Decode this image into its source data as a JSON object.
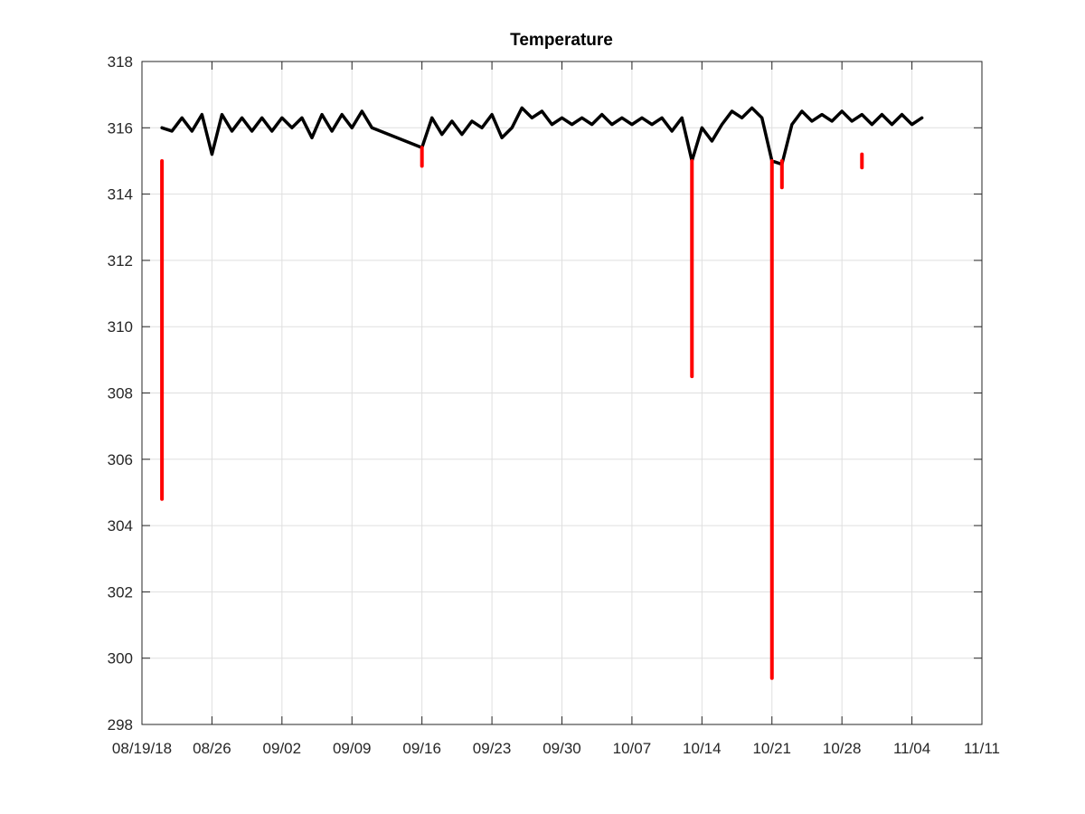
{
  "chart_data": {
    "type": "line",
    "title": "Temperature",
    "xlim": [
      "2018-08-19",
      "2018-11-11"
    ],
    "xticks": [
      {
        "value": "2018-08-19",
        "label": "08/19/18"
      },
      {
        "value": "2018-08-26",
        "label": "08/26"
      },
      {
        "value": "2018-09-02",
        "label": "09/02"
      },
      {
        "value": "2018-09-09",
        "label": "09/09"
      },
      {
        "value": "2018-09-16",
        "label": "09/16"
      },
      {
        "value": "2018-09-23",
        "label": "09/23"
      },
      {
        "value": "2018-09-30",
        "label": "09/30"
      },
      {
        "value": "2018-10-07",
        "label": "10/07"
      },
      {
        "value": "2018-10-14",
        "label": "10/14"
      },
      {
        "value": "2018-10-21",
        "label": "10/21"
      },
      {
        "value": "2018-10-28",
        "label": "10/28"
      },
      {
        "value": "2018-11-04",
        "label": "11/04"
      },
      {
        "value": "2018-11-11",
        "label": "11/11"
      }
    ],
    "ylim": [
      298,
      318
    ],
    "yticks": [
      298,
      300,
      302,
      304,
      306,
      308,
      310,
      312,
      314,
      316,
      318
    ],
    "grid": true,
    "series": [
      {
        "color": "#000000",
        "x": [
          "2018-08-21",
          "2018-08-22",
          "2018-08-23",
          "2018-08-24",
          "2018-08-25",
          "2018-08-26",
          "2018-08-27",
          "2018-08-28",
          "2018-08-29",
          "2018-08-30",
          "2018-08-31",
          "2018-09-01",
          "2018-09-02",
          "2018-09-03",
          "2018-09-04",
          "2018-09-05",
          "2018-09-06",
          "2018-09-07",
          "2018-09-08",
          "2018-09-09",
          "2018-09-10",
          "2018-09-11",
          "2018-09-16",
          "2018-09-17",
          "2018-09-18",
          "2018-09-19",
          "2018-09-20",
          "2018-09-21",
          "2018-09-22",
          "2018-09-23",
          "2018-09-24",
          "2018-09-25",
          "2018-09-26",
          "2018-09-27",
          "2018-09-28",
          "2018-09-29",
          "2018-09-30",
          "2018-10-01",
          "2018-10-02",
          "2018-10-03",
          "2018-10-04",
          "2018-10-05",
          "2018-10-06",
          "2018-10-07",
          "2018-10-08",
          "2018-10-09",
          "2018-10-10",
          "2018-10-11",
          "2018-10-12",
          "2018-10-13",
          "2018-10-14",
          "2018-10-15",
          "2018-10-16",
          "2018-10-17",
          "2018-10-18",
          "2018-10-19",
          "2018-10-20",
          "2018-10-21",
          "2018-10-22",
          "2018-10-23",
          "2018-10-24",
          "2018-10-25",
          "2018-10-26",
          "2018-10-27",
          "2018-10-28",
          "2018-10-29",
          "2018-10-30",
          "2018-10-31",
          "2018-11-01",
          "2018-11-02",
          "2018-11-03",
          "2018-11-04",
          "2018-11-05"
        ],
        "values": [
          316.0,
          315.9,
          316.3,
          315.9,
          316.4,
          315.2,
          316.4,
          315.9,
          316.3,
          315.9,
          316.3,
          315.9,
          316.3,
          316.0,
          316.3,
          315.7,
          316.4,
          315.9,
          316.4,
          316.0,
          316.5,
          316.0,
          315.4,
          316.3,
          315.8,
          316.2,
          315.8,
          316.2,
          316.0,
          316.4,
          315.7,
          316.0,
          316.6,
          316.3,
          316.5,
          316.1,
          316.3,
          316.1,
          316.3,
          316.1,
          316.4,
          316.1,
          316.3,
          316.1,
          316.3,
          316.1,
          316.3,
          315.9,
          316.3,
          315.0,
          316.0,
          315.6,
          316.1,
          316.5,
          316.3,
          316.6,
          316.3,
          315.0,
          314.9,
          316.1,
          316.5,
          316.2,
          316.4,
          316.2,
          316.5,
          316.2,
          316.4,
          316.1,
          316.4,
          316.1,
          316.4,
          316.1,
          316.3
        ]
      },
      {
        "color": "#ff0000",
        "x": [
          "2018-08-21",
          "2018-08-21",
          "2018-08-21",
          "2018-09-16",
          "2018-09-16",
          "2018-09-16",
          "2018-10-13",
          "2018-10-13",
          "2018-10-13",
          "2018-10-21",
          "2018-10-21",
          "2018-10-21",
          "2018-10-22",
          "2018-10-22",
          "2018-10-22",
          "2018-10-30",
          "2018-10-30"
        ],
        "values": [
          315.0,
          304.8,
          null,
          315.4,
          314.85,
          null,
          315.0,
          308.5,
          null,
          315.0,
          299.4,
          null,
          315.0,
          314.2,
          null,
          315.2,
          314.8
        ]
      }
    ]
  }
}
